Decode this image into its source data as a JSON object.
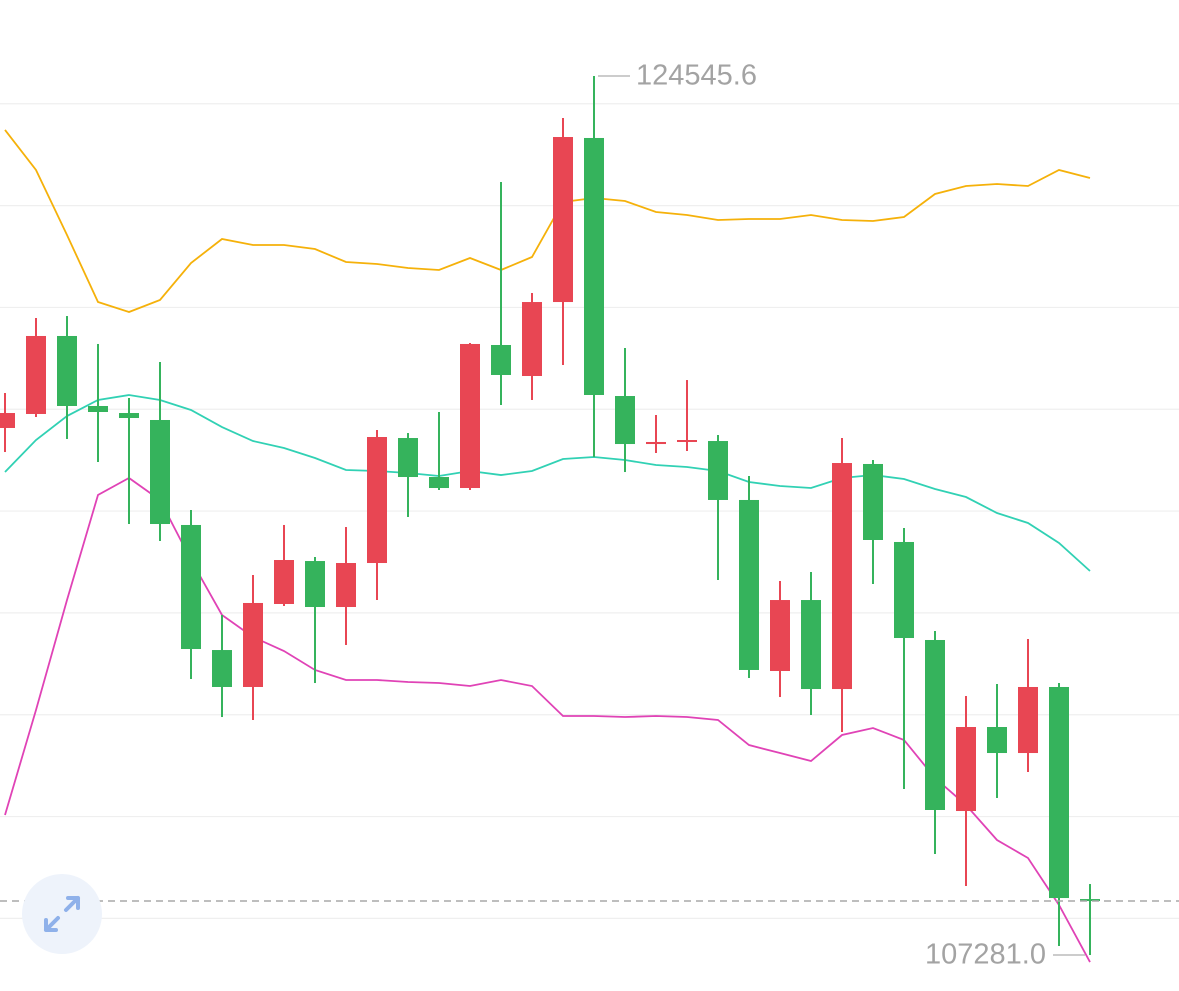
{
  "chart_data": {
    "type": "candlestick",
    "open": [
      117632,
      117907,
      119439,
      118064,
      117926,
      117789,
      115727,
      113271,
      112545,
      114175,
      115019,
      114116,
      114980,
      117435,
      116669,
      116453,
      119262,
      118653,
      120106,
      123328,
      118260,
      117317,
      117376,
      117376,
      116218,
      112859,
      114253,
      112505,
      116925,
      115393,
      113468,
      110109,
      111759,
      111248,
      112545,
      108380
    ],
    "high": [
      118319,
      119792,
      119831,
      119282,
      118221,
      118928,
      116021,
      113959,
      114744,
      115727,
      115098,
      115687,
      117592,
      117533,
      117946,
      119301,
      122463,
      120283,
      123720,
      124545.6,
      119203,
      117887,
      118574,
      117494,
      116689,
      114627,
      114803,
      117435,
      117003,
      115668,
      113645,
      112368,
      112604,
      113487,
      112623,
      108675
    ],
    "low": [
      117160,
      117848,
      117416,
      116964,
      115746,
      115412,
      112702,
      111955,
      111897,
      114136,
      112623,
      113370,
      114253,
      115884,
      116414,
      116414,
      118083,
      118182,
      118869,
      117062,
      116767,
      117141,
      117180,
      114646,
      112721,
      112348,
      111995,
      111661,
      114568,
      110541,
      109265,
      108636,
      110365,
      110875,
      107458,
      107281
    ],
    "close": [
      117926,
      119439,
      118064,
      117946,
      117828,
      115746,
      113291,
      112545,
      114195,
      115039,
      114116,
      114980,
      117455,
      116669,
      116453,
      119282,
      118673,
      120106,
      123347,
      118280,
      117317,
      117357,
      117396,
      116218,
      112879,
      114253,
      112505,
      116944,
      115432,
      113507,
      110129,
      111759,
      111248,
      112545,
      108400,
      108341
    ],
    "up_color": "#e84653",
    "down_color": "#35b35c",
    "bands": [
      {
        "color": "#f5b10a",
        "values": [
          123485,
          122699,
          121422,
          120106,
          119910,
          120146,
          120872,
          121344,
          121226,
          121226,
          121147,
          120892,
          120853,
          120774,
          120735,
          120971,
          120735,
          120990,
          122071,
          122149,
          122090,
          121874,
          121815,
          121717,
          121737,
          121737,
          121815,
          121717,
          121697,
          121776,
          122228,
          122385,
          122424,
          122385,
          122699,
          122542
        ]
      },
      {
        "color": "#31d1b4",
        "values": [
          116767,
          117396,
          117867,
          118182,
          118280,
          118182,
          117985,
          117651,
          117376,
          117239,
          117042,
          116807,
          116787,
          116748,
          116689,
          116787,
          116708,
          116787,
          117023,
          117062,
          117003,
          116905,
          116866,
          116787,
          116571,
          116492,
          116453,
          116650,
          116708,
          116630,
          116434,
          116276,
          115962,
          115766,
          115373,
          114823
        ]
      },
      {
        "color": "#e043b6",
        "values": [
          110031,
          112093,
          114253,
          116316,
          116650,
          116218,
          115039,
          113959,
          113527,
          113252,
          112879,
          112682,
          112682,
          112643,
          112623,
          112564,
          112682,
          112564,
          111975,
          111975,
          111955,
          111975,
          111955,
          111897,
          111405,
          111248,
          111091,
          111602,
          111739,
          111504,
          110757,
          110227,
          109540,
          109186,
          108263,
          107143
        ]
      }
    ],
    "max_label": "124545.6",
    "min_label": "107281.0",
    "ylim": [
      106574,
      126038
    ],
    "yticks": [
      108000,
      110000,
      112000,
      114000,
      116000,
      118000,
      120000,
      122000,
      124000
    ],
    "grid": true
  }
}
